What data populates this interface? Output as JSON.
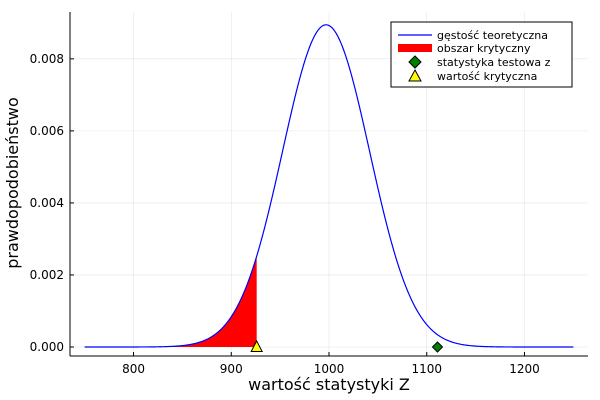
{
  "chart_data": {
    "type": "line",
    "title": "",
    "xlabel": "wartość statystyki Z",
    "ylabel": "prawdopodobieństwo",
    "xlim": [
      735,
      1265
    ],
    "ylim": [
      -0.00025,
      0.0093
    ],
    "xticks": [
      800,
      900,
      1000,
      1100,
      1200
    ],
    "xtick_labels": [
      "800",
      "900",
      "1000",
      "1100",
      "1200"
    ],
    "yticks": [
      0.0,
      0.002,
      0.004,
      0.006,
      0.008
    ],
    "ytick_labels": [
      "0.000",
      "0.002",
      "0.004",
      "0.006",
      "0.008"
    ],
    "grid": true,
    "legend_position": "top-right",
    "density": {
      "name": "gęstość teoretyczna",
      "color": "#0000ff",
      "mean": 997,
      "sd": 44.6,
      "x_range": [
        750,
        1250
      ]
    },
    "critical_region": {
      "name": "obszar krytyczny",
      "color": "#ff0000",
      "x_range": [
        750,
        926
      ]
    },
    "test_statistic": {
      "name": "statystyka testowa z",
      "x": 1111,
      "y": 0.0,
      "color": "#008000",
      "marker": "diamond"
    },
    "critical_value": {
      "name": "wartość krytyczna",
      "x": 926,
      "y": 0.0,
      "color": "#ffff00",
      "marker": "triangle"
    }
  }
}
